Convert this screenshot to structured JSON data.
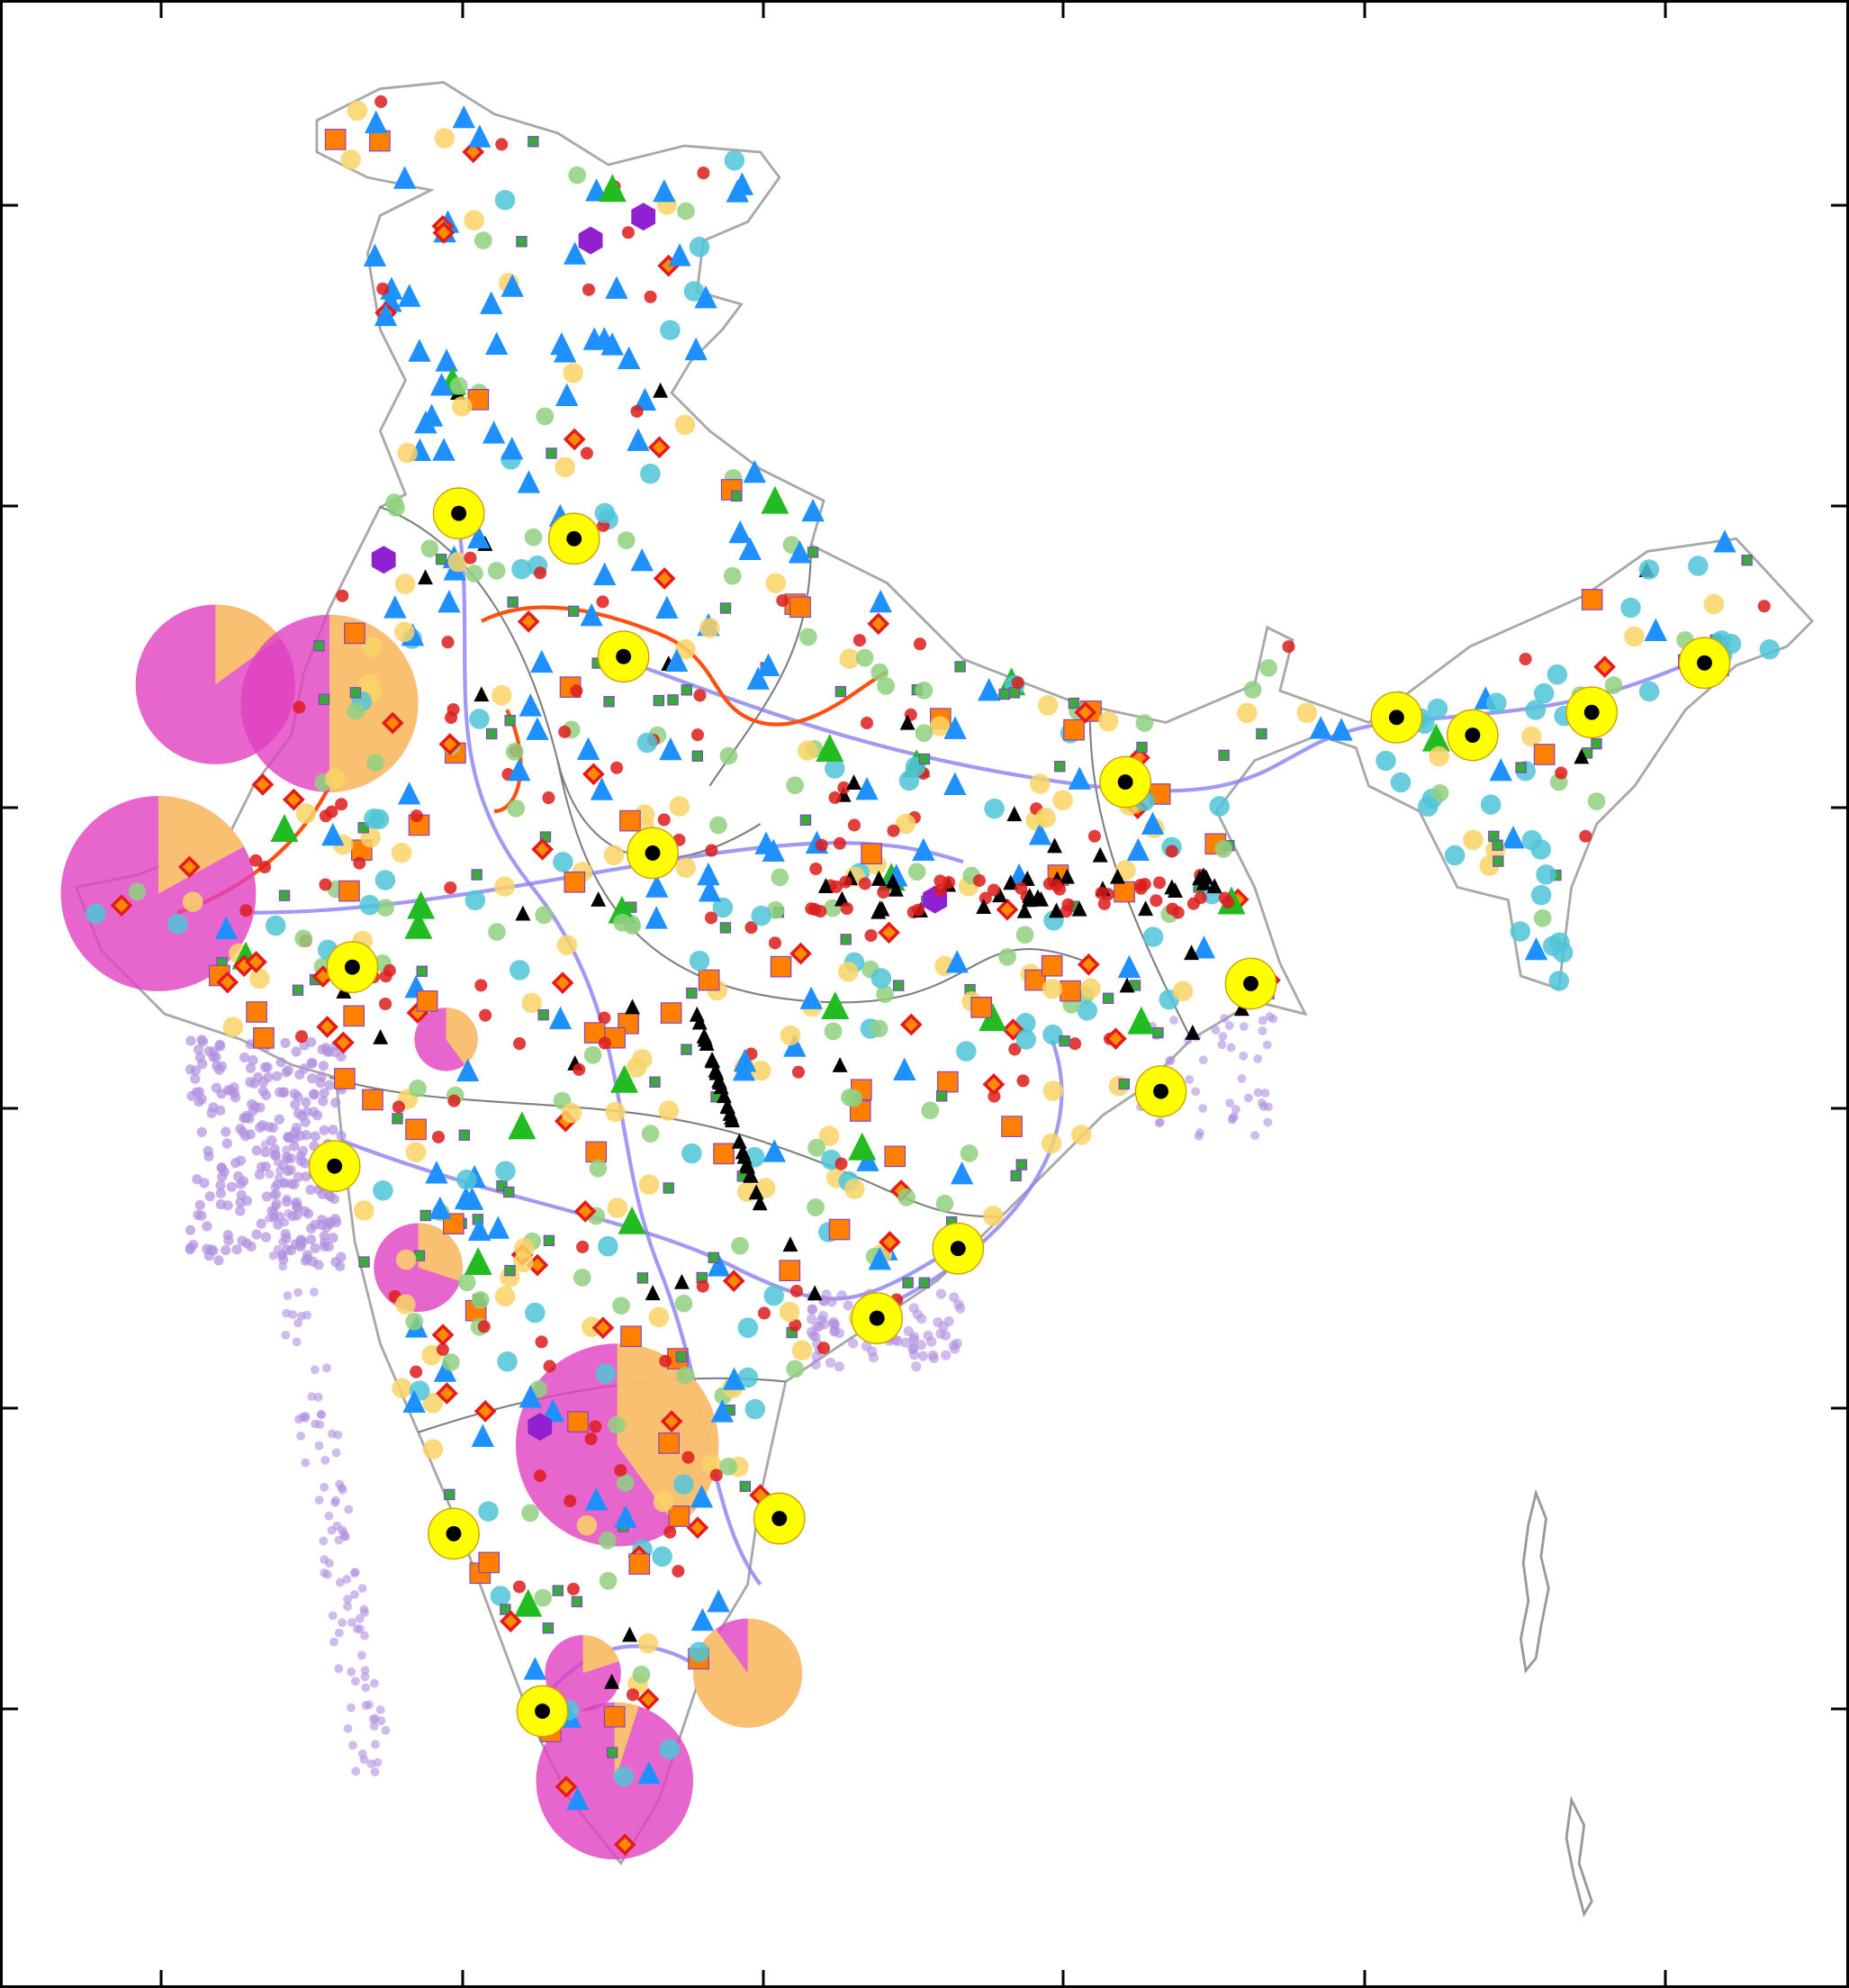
{
  "map": {
    "frame_color": "#000000",
    "outline_color": "#a0a0a0",
    "state_border_color": "#808080",
    "district_border_color": "#f4a0a0",
    "ticks_per_side": 6
  },
  "symbols": {
    "solar_circle": "#f9d466",
    "wind_circle": "#50c4d8",
    "hydro_triangle": "#1e90ff",
    "thermal_square": "#ff7f00",
    "gas_diamond": "#e41a1c",
    "nuclear_ring": "#ffff00",
    "biomass_square": "#3aaa3a",
    "coal_mine_triangle": "#000000",
    "small_plant_dot": "#dd1c1c",
    "green_circle": "#90d080",
    "pie_a": "#e040c0",
    "pie_b": "#fdd060",
    "hexagon": "#9020d0",
    "green_triangle": "#22bb22",
    "offshore_dot": "#b090e0",
    "transmission_line": "#8a7ff0",
    "pipeline_line": "#ff5010"
  }
}
